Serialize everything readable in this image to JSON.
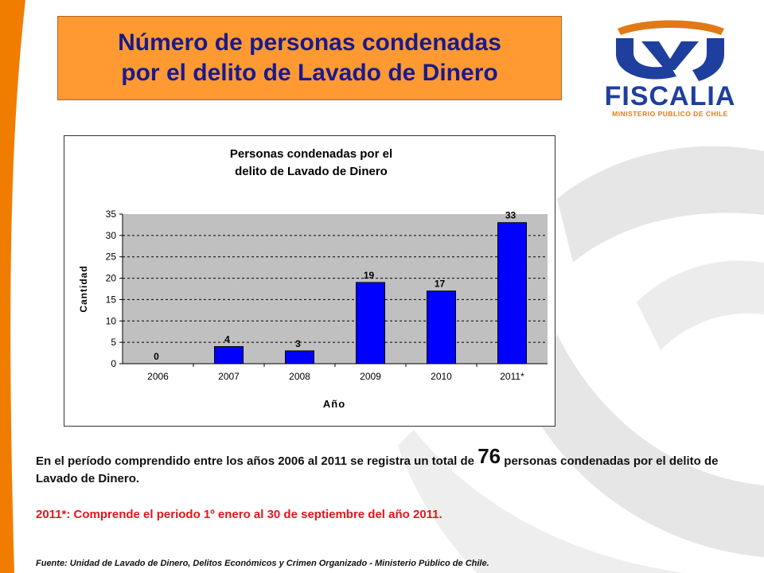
{
  "title": {
    "line1": "Número de personas condenadas",
    "line2": "por el delito de Lavado de Dinero"
  },
  "logo": {
    "word": "FISCALIA",
    "subtitle": "MINISTERIO PUBLICO DE CHILE",
    "colors": {
      "blue": "#1f3f9f",
      "orange": "#e07a18"
    }
  },
  "colors": {
    "title_bg": "#ff9a33",
    "title_text": "#1a1a8c",
    "bar": "#0000ff",
    "plot_bg": "#c0c0c0",
    "note": "#e8141a",
    "left_band": "#f07d00"
  },
  "chart_data": {
    "type": "bar",
    "title_lines": [
      "Personas condenadas por el",
      "delito de Lavado de Dinero"
    ],
    "categories": [
      "2006",
      "2007",
      "2008",
      "2009",
      "2010",
      "2011*"
    ],
    "values": [
      0,
      4,
      3,
      19,
      17,
      33
    ],
    "data_labels": [
      "0",
      "4",
      "3",
      "19",
      "17",
      "33"
    ],
    "xlabel": "Año",
    "ylabel": "Cantidad",
    "ylim": [
      0,
      35
    ],
    "yticks": [
      "0",
      "5",
      "10",
      "15",
      "20",
      "25",
      "30",
      "35"
    ],
    "grid": "horizontal dashed",
    "legend": "none"
  },
  "body": {
    "text_before": "En el período comprendido entre los años 2006 al 2011 se registra un total de ",
    "total": "76",
    "text_after": " personas condenadas por el delito de Lavado de Dinero."
  },
  "note": "2011*: Comprende el periodo 1º enero al 30 de septiembre del año 2011.",
  "source": "Fuente: Unidad de Lavado de Dinero, Delitos Económicos y Crimen Organizado - Ministerio Público de Chile."
}
